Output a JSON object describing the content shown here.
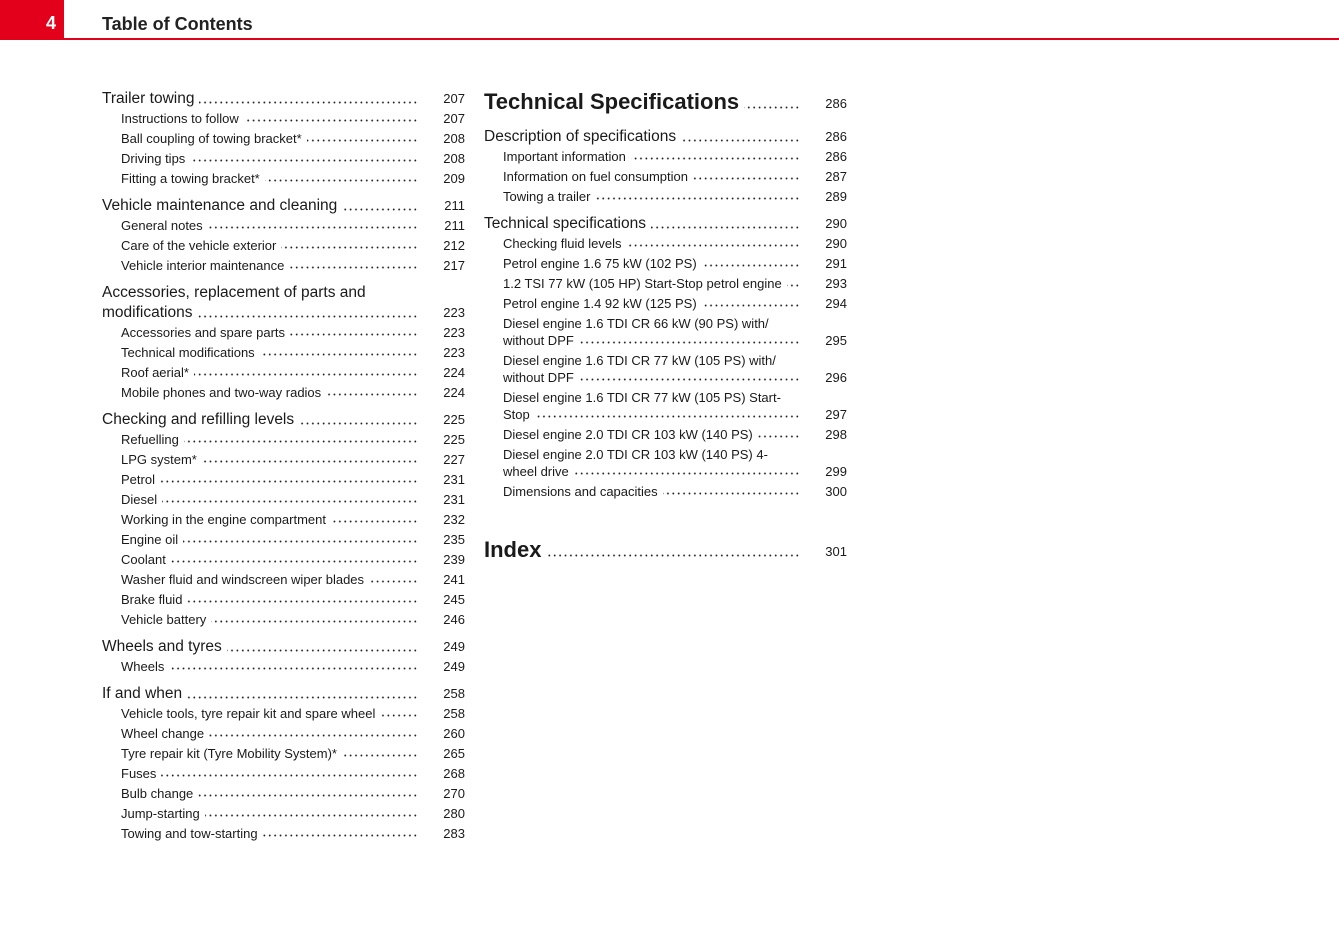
{
  "header": {
    "page_number": "4",
    "title": "Table of Contents"
  },
  "columns": [
    [
      {
        "text": "Trailer towing",
        "page": 207,
        "level": "section"
      },
      {
        "text": "Instructions to follow",
        "page": 207,
        "level": "sub"
      },
      {
        "text": "Ball coupling of towing bracket*",
        "page": 208,
        "level": "sub"
      },
      {
        "text": "Driving tips",
        "page": 208,
        "level": "sub"
      },
      {
        "text": "Fitting a towing bracket*",
        "page": 209,
        "level": "sub"
      },
      {
        "text": "Vehicle maintenance and cleaning",
        "page": 211,
        "level": "section"
      },
      {
        "text": "General notes",
        "page": 211,
        "level": "sub"
      },
      {
        "text": "Care of the vehicle exterior",
        "page": 212,
        "level": "sub"
      },
      {
        "text": "Vehicle interior maintenance",
        "page": 217,
        "level": "sub"
      },
      {
        "text": "Accessories, replacement of parts and modifications",
        "page": 223,
        "level": "section"
      },
      {
        "text": "Accessories and spare parts",
        "page": 223,
        "level": "sub"
      },
      {
        "text": "Technical modifications",
        "page": 223,
        "level": "sub"
      },
      {
        "text": "Roof aerial*",
        "page": 224,
        "level": "sub"
      },
      {
        "text": "Mobile phones and two-way radios",
        "page": 224,
        "level": "sub"
      },
      {
        "text": "Checking and refilling levels",
        "page": 225,
        "level": "section"
      },
      {
        "text": "Refuelling",
        "page": 225,
        "level": "sub"
      },
      {
        "text": "LPG system*",
        "page": 227,
        "level": "sub"
      },
      {
        "text": "Petrol",
        "page": 231,
        "level": "sub"
      },
      {
        "text": "Diesel",
        "page": 231,
        "level": "sub"
      },
      {
        "text": "Working in the engine compartment",
        "page": 232,
        "level": "sub"
      },
      {
        "text": "Engine oil",
        "page": 235,
        "level": "sub"
      },
      {
        "text": "Coolant",
        "page": 239,
        "level": "sub"
      },
      {
        "text": "Washer fluid and windscreen wiper blades",
        "page": 241,
        "level": "sub"
      },
      {
        "text": "Brake fluid",
        "page": 245,
        "level": "sub"
      },
      {
        "text": "Vehicle battery",
        "page": 246,
        "level": "sub"
      },
      {
        "text": "Wheels and tyres",
        "page": 249,
        "level": "section"
      },
      {
        "text": "Wheels",
        "page": 249,
        "level": "sub"
      },
      {
        "text": "If and when",
        "page": 258,
        "level": "section"
      },
      {
        "text": "Vehicle tools, tyre repair kit and spare wheel",
        "page": 258,
        "level": "sub"
      },
      {
        "text": "Wheel change",
        "page": 260,
        "level": "sub"
      },
      {
        "text": "Tyre repair kit (Tyre Mobility System)*",
        "page": 265,
        "level": "sub"
      },
      {
        "text": "Fuses",
        "page": 268,
        "level": "sub"
      },
      {
        "text": "Bulb change",
        "page": 270,
        "level": "sub"
      },
      {
        "text": "Jump-starting",
        "page": 280,
        "level": "sub"
      },
      {
        "text": "Towing and tow-starting",
        "page": 283,
        "level": "sub"
      }
    ],
    [
      {
        "text": "Technical Specifications",
        "page": 286,
        "level": "heading"
      },
      {
        "text": "Description of specifications",
        "page": 286,
        "level": "section"
      },
      {
        "text": "Important information",
        "page": 286,
        "level": "sub"
      },
      {
        "text": "Information on fuel consumption",
        "page": 287,
        "level": "sub"
      },
      {
        "text": "Towing a trailer",
        "page": 289,
        "level": "sub"
      },
      {
        "text": "Technical specifications",
        "page": 290,
        "level": "section"
      },
      {
        "text": "Checking fluid levels",
        "page": 290,
        "level": "sub"
      },
      {
        "text": "Petrol engine 1.6 75 kW (102 PS)",
        "page": 291,
        "level": "sub"
      },
      {
        "text": "1.2 TSI 77 kW (105 HP) Start-Stop petrol engine",
        "page": 293,
        "level": "sub"
      },
      {
        "text": "Petrol engine 1.4 92 kW (125 PS)",
        "page": 294,
        "level": "sub"
      },
      {
        "text": "Diesel engine 1.6 TDI CR 66 kW (90 PS) with/ without DPF",
        "page": 295,
        "level": "sub"
      },
      {
        "text": "Diesel engine 1.6 TDI CR 77 kW (105 PS) with/ without DPF",
        "page": 296,
        "level": "sub"
      },
      {
        "text": "Diesel engine 1.6 TDI CR 77 kW (105 PS) Start-Stop",
        "page": 297,
        "level": "sub"
      },
      {
        "text": "Diesel engine 2.0 TDI CR 103 kW (140 PS)",
        "page": 298,
        "level": "sub"
      },
      {
        "text": "Diesel engine 2.0 TDI CR 103 kW (140 PS) 4-wheel drive",
        "page": 299,
        "level": "sub"
      },
      {
        "text": "Dimensions and capacities",
        "page": 300,
        "level": "sub"
      },
      {
        "text": "Index",
        "page": 301,
        "level": "heading"
      }
    ]
  ]
}
